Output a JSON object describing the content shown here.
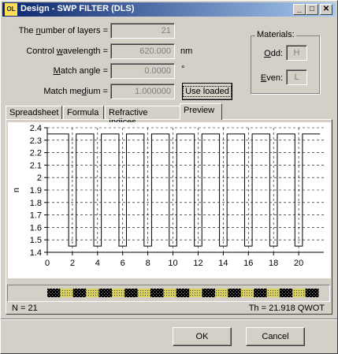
{
  "window": {
    "icon_text": "OL",
    "title": "Design - SWP FILTER (DLS)",
    "minimize": "_",
    "maximize": "□",
    "close": "✕"
  },
  "form": {
    "layers_label_pre": "The ",
    "layers_label_u": "n",
    "layers_label_post": "umber of layers =",
    "layers_value": "21",
    "wavelength_label_pre": "Control ",
    "wavelength_label_u": "w",
    "wavelength_label_post": "avelength =",
    "wavelength_value": "620.000",
    "wavelength_unit": "nm",
    "angle_label_pre": "",
    "angle_label_u": "M",
    "angle_label_post": "atch angle =",
    "angle_value": "0.0000",
    "angle_unit": "°",
    "medium_label_pre": "Match me",
    "medium_label_u": "d",
    "medium_label_post": "ium =",
    "medium_value": "1.000000",
    "use_loaded_label": "Use loaded"
  },
  "materials": {
    "title": "Materials:",
    "odd_label": "Odd:",
    "odd_value": "H",
    "even_label": "Even:",
    "even_value": "L"
  },
  "tabs": [
    {
      "label": "Spreadsheet"
    },
    {
      "label": "Formula"
    },
    {
      "label": "Refractive Indices"
    },
    {
      "label": "Preview"
    }
  ],
  "status": {
    "n_text": "N = 21",
    "th_text": "Th = 21.918 QWOT"
  },
  "buttons": {
    "ok": "OK",
    "cancel": "Cancel"
  },
  "chart_data": {
    "type": "line",
    "ylabel": "n",
    "xlabel": "",
    "xlim": [
      0,
      22
    ],
    "ylim": [
      1.4,
      2.4
    ],
    "x_ticks": [
      0,
      2,
      4,
      6,
      8,
      10,
      12,
      14,
      16,
      18,
      20
    ],
    "y_ticks": [
      1.4,
      1.5,
      1.6,
      1.7,
      1.8,
      1.9,
      2.0,
      2.1,
      2.2,
      2.3,
      2.4
    ],
    "y_tick_labels": [
      "1.4",
      "1.5",
      "1.6",
      "1.7",
      "1.8",
      "1.9",
      "2",
      "2.1",
      "2.2",
      "2.3",
      "2.4"
    ],
    "grid": "dashed",
    "series": [
      {
        "x": [
          0,
          1.7,
          1.7,
          2.3,
          2.3,
          3.7,
          3.7,
          4.3,
          4.3,
          5.7,
          5.7,
          6.3,
          6.3,
          7.7,
          7.7,
          8.3,
          8.3,
          9.7,
          9.7,
          10.3,
          10.3,
          11.7,
          11.7,
          12.3,
          12.3,
          13.7,
          13.7,
          14.3,
          14.3,
          15.7,
          15.7,
          16.3,
          16.3,
          17.7,
          17.7,
          18.3,
          18.3,
          19.7,
          19.7,
          20.3,
          20.3,
          21.7
        ],
        "y": [
          2.35,
          2.35,
          1.45,
          1.45,
          2.35,
          2.35,
          1.45,
          1.45,
          2.35,
          2.35,
          1.45,
          1.45,
          2.35,
          2.35,
          1.45,
          1.45,
          2.35,
          2.35,
          1.45,
          1.45,
          2.35,
          2.35,
          1.45,
          1.45,
          2.35,
          2.35,
          1.45,
          1.45,
          2.35,
          2.35,
          1.45,
          1.45,
          2.35,
          2.35,
          1.45,
          1.45,
          2.35,
          2.35,
          1.45,
          1.45,
          2.35,
          2.35
        ]
      }
    ],
    "boundaries": [
      2,
      4,
      6,
      8,
      10,
      12,
      14,
      16,
      18,
      20
    ],
    "layer_stack": {
      "count": 21,
      "odd_color": "#000000",
      "even_color": "#d8d060"
    }
  }
}
